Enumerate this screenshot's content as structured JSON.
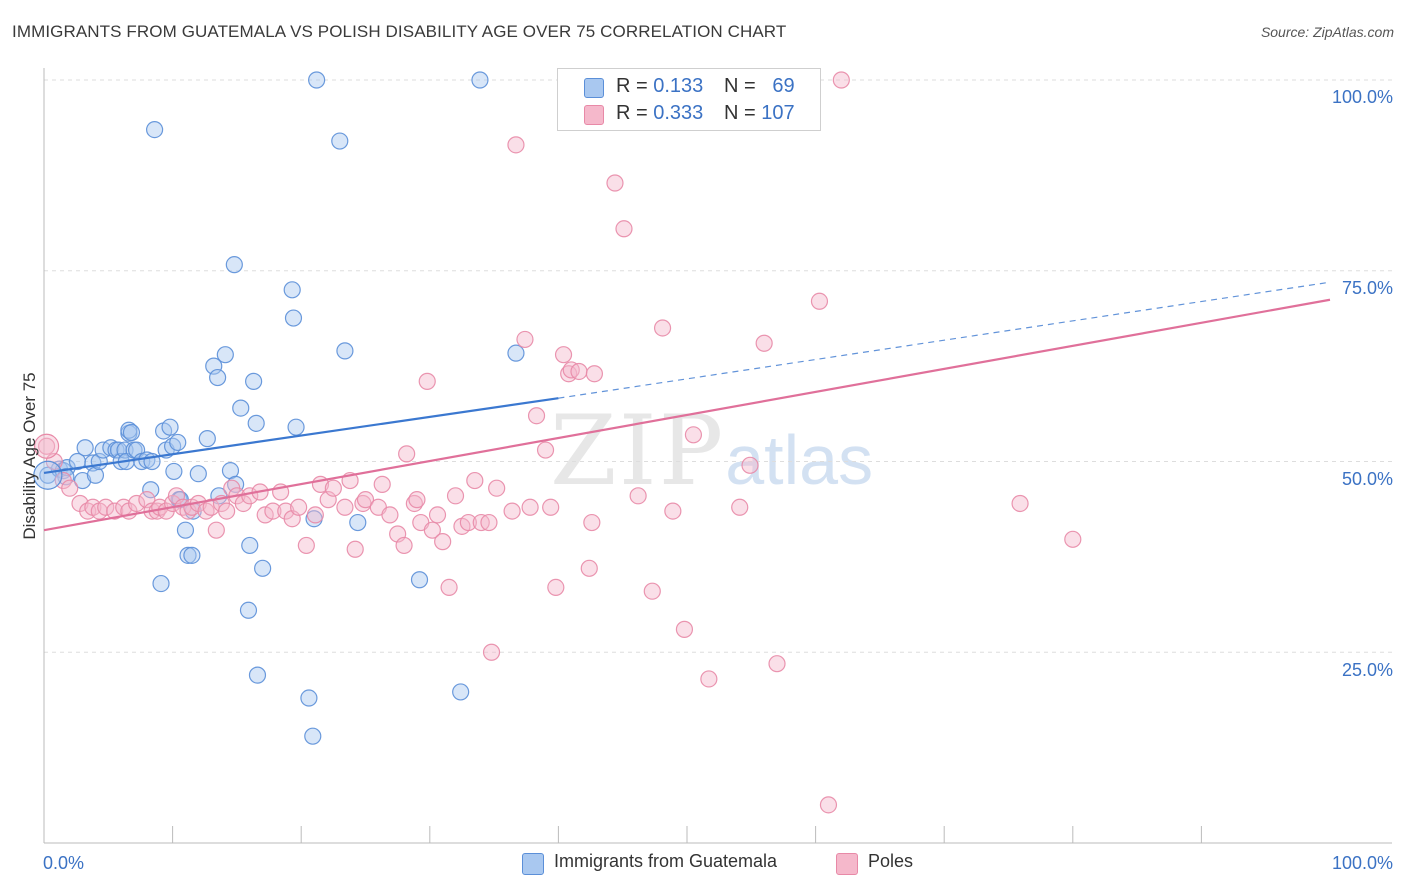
{
  "header": {
    "title": "IMMIGRANTS FROM GUATEMALA VS POLISH DISABILITY AGE OVER 75 CORRELATION CHART",
    "source": "Source: ZipAtlas.com"
  },
  "watermark": {
    "part1": "ZIP",
    "part2": "atlas"
  },
  "legend_top": {
    "rows": [
      {
        "r_label": "R =",
        "r_value": "0.133",
        "n_label": "N =",
        "n_value": "69"
      },
      {
        "r_label": "R =",
        "r_value": "0.333",
        "n_label": "N =",
        "n_value": "107"
      }
    ]
  },
  "legend_bottom": {
    "series1": "Immigrants from Guatemala",
    "series2": "Poles"
  },
  "axes": {
    "ylabel": "Disability Age Over 75",
    "x_min_label": "0.0%",
    "x_max_label": "100.0%",
    "y_ticks": [
      "100.0%",
      "75.0%",
      "50.0%",
      "25.0%"
    ]
  },
  "colors": {
    "blue_fill": "#a9c8f0",
    "blue_stroke": "#5b8fd8",
    "blue_line": "#3b78d0",
    "pink_fill": "#f5b8cb",
    "pink_stroke": "#e889a7",
    "pink_line": "#e0709a"
  },
  "chart_data": {
    "type": "scatter",
    "title": "IMMIGRANTS FROM GUATEMALA VS POLISH DISABILITY AGE OVER 75 CORRELATION CHART",
    "xlabel": "",
    "ylabel": "Disability Age Over 75",
    "xlim": [
      0,
      100
    ],
    "ylim": [
      0,
      100
    ],
    "grid": true,
    "legend": "bottom",
    "series": [
      {
        "name": "Immigrants from Guatemala",
        "R": 0.133,
        "N": 69,
        "trend": {
          "x0": 0,
          "y0": 48.5,
          "x1": 40,
          "y1": 58.3,
          "x_dash_end": 100,
          "y_dash_end": 73.5
        },
        "points": [
          [
            0.3,
            48.2
          ],
          [
            1.2,
            49.0
          ],
          [
            1.5,
            48.8
          ],
          [
            1.8,
            49.2
          ],
          [
            1.7,
            48.0
          ],
          [
            2.6,
            50.0
          ],
          [
            3.0,
            47.5
          ],
          [
            3.2,
            51.8
          ],
          [
            3.8,
            49.8
          ],
          [
            4.0,
            48.2
          ],
          [
            4.3,
            50.0
          ],
          [
            4.6,
            51.5
          ],
          [
            5.2,
            51.8
          ],
          [
            5.6,
            51.5
          ],
          [
            5.8,
            51.5
          ],
          [
            6.0,
            50.0
          ],
          [
            6.3,
            51.5
          ],
          [
            6.4,
            50.0
          ],
          [
            6.6,
            53.7
          ],
          [
            6.6,
            54.1
          ],
          [
            6.8,
            53.8
          ],
          [
            7.0,
            51.5
          ],
          [
            7.2,
            51.5
          ],
          [
            7.6,
            50.0
          ],
          [
            8.0,
            50.2
          ],
          [
            8.4,
            50.0
          ],
          [
            8.3,
            46.3
          ],
          [
            8.6,
            93.5
          ],
          [
            9.1,
            34.0
          ],
          [
            9.3,
            54.0
          ],
          [
            9.5,
            51.5
          ],
          [
            9.8,
            54.5
          ],
          [
            10.0,
            52.0
          ],
          [
            10.1,
            48.7
          ],
          [
            10.4,
            52.5
          ],
          [
            10.5,
            45.0
          ],
          [
            10.6,
            45.0
          ],
          [
            11.0,
            41.0
          ],
          [
            11.2,
            37.7
          ],
          [
            11.5,
            37.7
          ],
          [
            11.6,
            43.5
          ],
          [
            12.0,
            48.4
          ],
          [
            12.7,
            53.0
          ],
          [
            13.2,
            62.5
          ],
          [
            13.5,
            61.0
          ],
          [
            13.6,
            45.5
          ],
          [
            14.1,
            64.0
          ],
          [
            14.5,
            48.8
          ],
          [
            14.8,
            75.8
          ],
          [
            14.9,
            47.0
          ],
          [
            15.3,
            57.0
          ],
          [
            15.9,
            30.5
          ],
          [
            16.0,
            39.0
          ],
          [
            16.3,
            60.5
          ],
          [
            16.5,
            55.0
          ],
          [
            16.6,
            22.0
          ],
          [
            17.0,
            36.0
          ],
          [
            19.3,
            72.5
          ],
          [
            19.4,
            68.8
          ],
          [
            19.6,
            54.5
          ],
          [
            20.6,
            19.0
          ],
          [
            20.9,
            14.0
          ],
          [
            21.0,
            42.5
          ],
          [
            21.2,
            100.0
          ],
          [
            23.0,
            92.0
          ],
          [
            23.4,
            64.5
          ],
          [
            24.4,
            42.0
          ],
          [
            29.2,
            34.5
          ],
          [
            32.4,
            19.8
          ],
          [
            33.9,
            100.0
          ],
          [
            36.7,
            64.2
          ]
        ]
      },
      {
        "name": "Poles",
        "R": 0.333,
        "N": 107,
        "trend": {
          "x0": 0,
          "y0": 41.0,
          "x1": 100,
          "y1": 71.2
        },
        "points": [
          [
            0.2,
            52.0
          ],
          [
            0.8,
            50.0
          ],
          [
            1.5,
            47.5
          ],
          [
            2.0,
            46.5
          ],
          [
            2.8,
            44.5
          ],
          [
            3.4,
            43.5
          ],
          [
            3.8,
            44.0
          ],
          [
            4.3,
            43.5
          ],
          [
            4.8,
            44.0
          ],
          [
            5.5,
            43.5
          ],
          [
            6.2,
            44.0
          ],
          [
            6.6,
            43.5
          ],
          [
            7.2,
            44.5
          ],
          [
            8.0,
            45.0
          ],
          [
            8.4,
            43.5
          ],
          [
            8.8,
            43.5
          ],
          [
            9.0,
            44.0
          ],
          [
            9.5,
            43.5
          ],
          [
            10.0,
            44.5
          ],
          [
            10.3,
            45.5
          ],
          [
            10.8,
            44.0
          ],
          [
            11.2,
            43.5
          ],
          [
            11.5,
            44.0
          ],
          [
            12.0,
            44.5
          ],
          [
            12.6,
            43.5
          ],
          [
            13.0,
            44.0
          ],
          [
            13.4,
            41.0
          ],
          [
            13.8,
            44.5
          ],
          [
            14.2,
            43.5
          ],
          [
            14.6,
            46.5
          ],
          [
            15.0,
            45.5
          ],
          [
            15.5,
            44.5
          ],
          [
            16.0,
            45.5
          ],
          [
            16.8,
            46.0
          ],
          [
            17.2,
            43.0
          ],
          [
            17.8,
            43.5
          ],
          [
            18.4,
            46.0
          ],
          [
            18.8,
            43.5
          ],
          [
            19.3,
            42.5
          ],
          [
            19.8,
            44.0
          ],
          [
            20.4,
            39.0
          ],
          [
            21.1,
            43.0
          ],
          [
            21.5,
            47.0
          ],
          [
            22.1,
            45.0
          ],
          [
            22.5,
            46.5
          ],
          [
            23.4,
            44.0
          ],
          [
            23.8,
            47.5
          ],
          [
            24.2,
            38.5
          ],
          [
            24.8,
            44.5
          ],
          [
            25.0,
            45.0
          ],
          [
            26.0,
            44.0
          ],
          [
            26.3,
            47.0
          ],
          [
            26.9,
            43.0
          ],
          [
            27.5,
            40.5
          ],
          [
            28.0,
            39.0
          ],
          [
            28.2,
            51.0
          ],
          [
            28.8,
            44.5
          ],
          [
            29.0,
            45.0
          ],
          [
            29.3,
            42.0
          ],
          [
            29.8,
            60.5
          ],
          [
            30.2,
            41.0
          ],
          [
            30.6,
            43.0
          ],
          [
            31.0,
            39.5
          ],
          [
            31.5,
            33.5
          ],
          [
            32.0,
            45.5
          ],
          [
            32.5,
            41.5
          ],
          [
            33.0,
            42.0
          ],
          [
            33.5,
            47.5
          ],
          [
            34.0,
            42.0
          ],
          [
            34.6,
            42.0
          ],
          [
            34.8,
            25.0
          ],
          [
            35.2,
            46.5
          ],
          [
            36.4,
            43.5
          ],
          [
            36.7,
            91.5
          ],
          [
            37.4,
            66.0
          ],
          [
            37.8,
            44.0
          ],
          [
            38.3,
            56.0
          ],
          [
            39.0,
            51.5
          ],
          [
            39.4,
            44.0
          ],
          [
            39.8,
            33.5
          ],
          [
            40.4,
            64.0
          ],
          [
            40.8,
            61.5
          ],
          [
            41.0,
            62.0
          ],
          [
            41.6,
            61.8
          ],
          [
            42.0,
            100.0
          ],
          [
            42.4,
            36.0
          ],
          [
            42.6,
            42.0
          ],
          [
            42.8,
            61.5
          ],
          [
            44.4,
            86.5
          ],
          [
            45.1,
            80.5
          ],
          [
            46.2,
            45.5
          ],
          [
            47.0,
            100.0
          ],
          [
            47.3,
            33.0
          ],
          [
            48.1,
            67.5
          ],
          [
            48.9,
            43.5
          ],
          [
            49.8,
            28.0
          ],
          [
            50.5,
            53.5
          ],
          [
            51.7,
            21.5
          ],
          [
            54.1,
            44.0
          ],
          [
            54.9,
            49.5
          ],
          [
            56.0,
            65.5
          ],
          [
            57.0,
            23.5
          ],
          [
            60.3,
            71.0
          ],
          [
            61.0,
            5.0
          ],
          [
            62.0,
            100.0
          ],
          [
            75.9,
            44.5
          ],
          [
            80.0,
            39.8
          ]
        ]
      }
    ]
  }
}
